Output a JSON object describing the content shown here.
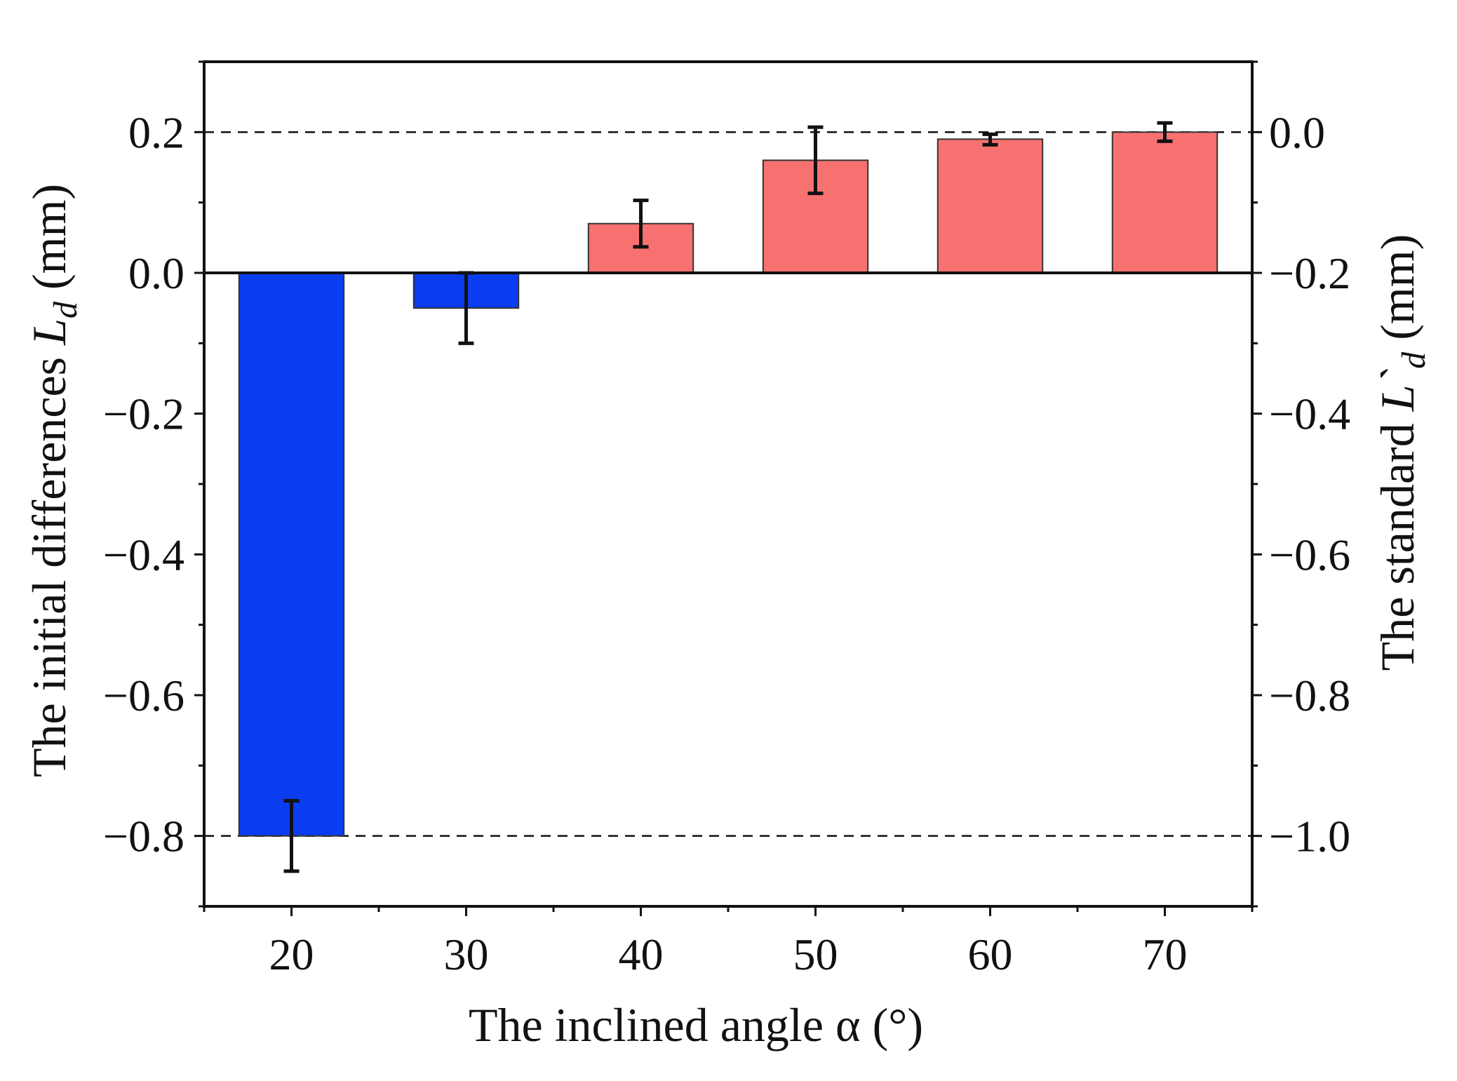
{
  "chart_data": {
    "type": "bar",
    "title": "",
    "xlabel": "The inclined angle α (°)",
    "ylabel": {
      "prefix": "The initial differences ",
      "symbol": "L",
      "subscript": "d",
      "suffix": " (mm)"
    },
    "y2label": {
      "prefix": "The standard ",
      "symbol": "L`",
      "subscript": "d",
      "suffix": " (mm)"
    },
    "categories": [
      "20",
      "30",
      "40",
      "50",
      "60",
      "70"
    ],
    "x": [
      20,
      30,
      40,
      50,
      60,
      70
    ],
    "xlim": [
      15,
      75
    ],
    "values": [
      -0.8,
      -0.05,
      0.07,
      0.16,
      0.19,
      0.2
    ],
    "error_low": [
      -0.85,
      -0.1,
      0.037,
      0.113,
      0.182,
      0.187
    ],
    "error_high": [
      -0.75,
      0.0,
      0.103,
      0.207,
      0.197,
      0.213
    ],
    "ylim": [
      -0.9,
      0.3
    ],
    "y_ticks": [
      0.2,
      0.0,
      -0.2,
      -0.4,
      -0.6,
      -0.8
    ],
    "y_tick_labels": [
      "0.2",
      "0.0",
      "−0.2",
      "−0.4",
      "−0.6",
      "−0.8"
    ],
    "y2_ticks": [
      0.0,
      -0.2,
      -0.4,
      -0.6,
      -0.8,
      -1.0
    ],
    "y2_tick_labels": [
      "0.0",
      "−0.2",
      "−0.4",
      "−0.6",
      "−0.8",
      "−1.0"
    ],
    "y2_offset": -0.2,
    "reference_lines": [
      0.2,
      -0.8
    ],
    "colors": {
      "negative": "#0a3cf0",
      "positive": "#f87171",
      "axis": "#111111"
    }
  }
}
